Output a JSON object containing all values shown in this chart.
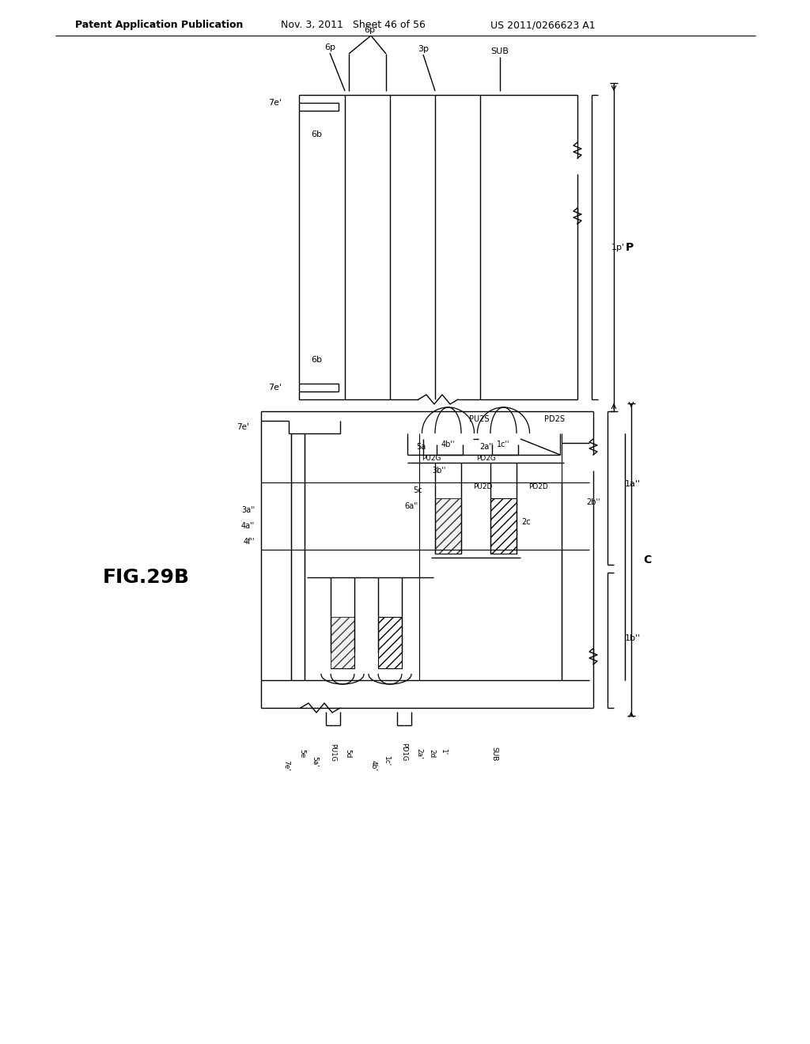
{
  "title_left": "Patent Application Publication",
  "title_mid": "Nov. 3, 2011   Sheet 46 of 56",
  "title_right": "US 2011/0266623 A1",
  "fig_label": "FIG.29B",
  "bg_color": "#ffffff",
  "line_color": "#000000"
}
